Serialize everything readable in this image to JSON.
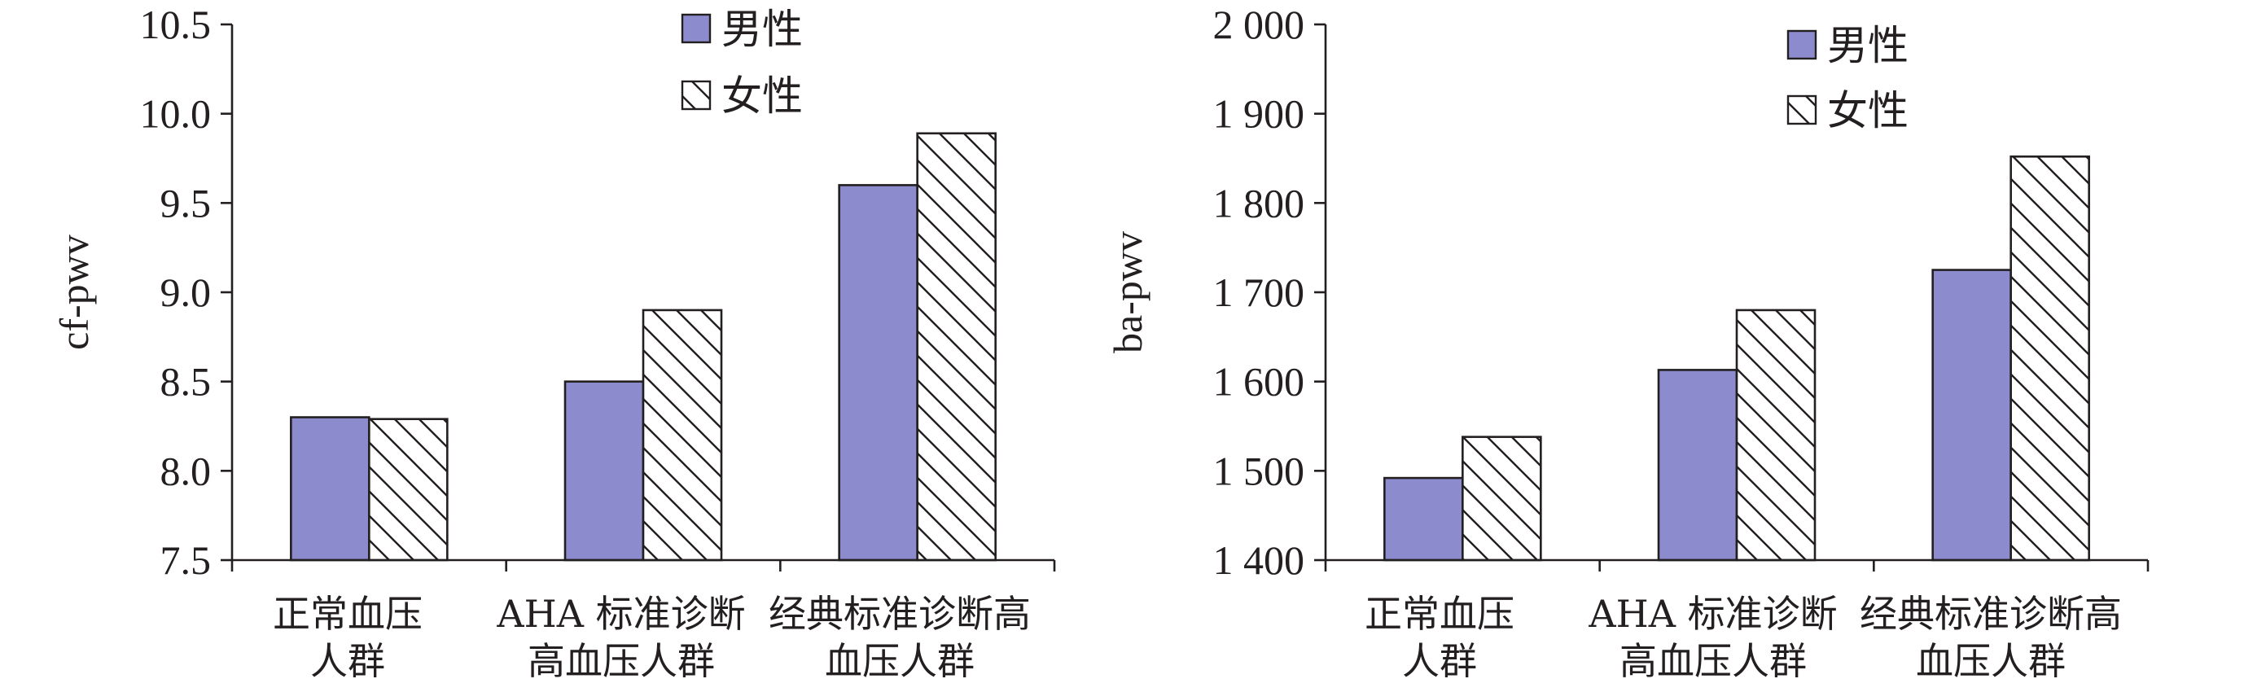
{
  "colors": {
    "male_fill": "#8b8bcd",
    "female_fill": "#ffffff",
    "stroke": "#231f20"
  },
  "chart_data": [
    {
      "type": "bar",
      "categories": [
        [
          "正常血压",
          "人群"
        ],
        [
          "AHA 标准诊断",
          "高血压人群"
        ],
        [
          "经典标准诊断高",
          "血压人群"
        ]
      ],
      "series": [
        {
          "name": "男性",
          "values": [
            8.3,
            8.5,
            9.6
          ]
        },
        {
          "name": "女性",
          "values": [
            8.29,
            8.9,
            9.89
          ]
        }
      ],
      "ylabel": "cf-pwv",
      "ylim": [
        7.5,
        10.5
      ],
      "yticks": [
        "7.5",
        "8.0",
        "8.5",
        "9.0",
        "9.5",
        "10.0",
        "10.5"
      ],
      "legend": "top-center",
      "grid": false
    },
    {
      "type": "bar",
      "categories": [
        [
          "正常血压",
          "人群"
        ],
        [
          "AHA 标准诊断",
          "高血压人群"
        ],
        [
          "经典标准诊断高",
          "血压人群"
        ]
      ],
      "series": [
        {
          "name": "男性",
          "values": [
            1492,
            1613,
            1725
          ]
        },
        {
          "name": "女性",
          "values": [
            1538,
            1680,
            1852
          ]
        }
      ],
      "ylabel": "ba-pwv",
      "ylim": [
        1400,
        2000
      ],
      "yticks": [
        "1 400",
        "1 500",
        "1 600",
        "1 700",
        "1 800",
        "1 900",
        "2 000"
      ],
      "legend": "top-center",
      "grid": false
    }
  ]
}
